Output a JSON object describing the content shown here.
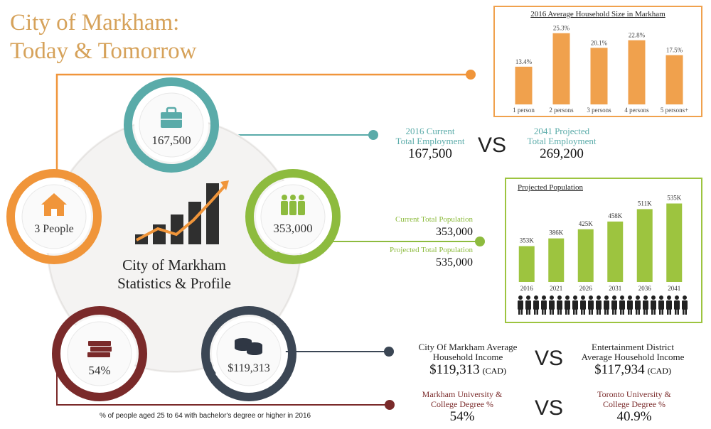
{
  "title": {
    "line1": "City of Markham:",
    "line2": "Today & Tomorrow"
  },
  "center": {
    "line1": "City of Markham",
    "line2": "Statistics & Profile"
  },
  "circles": {
    "employment": {
      "value": "167,500",
      "icon": "briefcase-icon",
      "color": "#5aaba9"
    },
    "population": {
      "value": "353,000",
      "icon": "people-icon",
      "color": "#8dbb3e"
    },
    "income": {
      "value": "$119,313",
      "icon": "coins-icon",
      "color": "#3b4654"
    },
    "degree": {
      "value": "54%",
      "icon": "books-icon",
      "color": "#7a2a2a"
    },
    "household": {
      "value": "3 People",
      "icon": "house-icon",
      "color": "#f0953a"
    }
  },
  "employment": {
    "current_label": "2016 Current\nTotal Employment",
    "current_value": "167,500",
    "vs": "VS",
    "projected_label": "2041 Projected\nTotal Employment",
    "projected_value": "269,200"
  },
  "population": {
    "current_label": "Current Total Population",
    "current_value": "353,000",
    "projected_label": "Projected Total Population",
    "projected_value": "535,000"
  },
  "income": {
    "left_label": "City Of Markham Average\nHousehold Income",
    "left_value": "$119,313",
    "left_unit": "(CAD)",
    "vs": "VS",
    "right_label": "Entertainment District\nAverage Household Income",
    "right_value": "$117,934",
    "right_unit": "(CAD)"
  },
  "degree": {
    "caption": "% of people aged 25 to 64  with bachelor's degree or higher in 2016",
    "left_label": "Markham University &\nCollege Degree %",
    "left_value": "54%",
    "vs": "VS",
    "right_label": "Toronto University &\nCollege Degree %",
    "right_value": "40.9%"
  },
  "chart_data": [
    {
      "type": "bar",
      "title": "2016 Average Household Size in Markham",
      "categories": [
        "1 person",
        "2 persons",
        "3 persons",
        "4 persons",
        "5 persons+"
      ],
      "values": [
        13.4,
        25.3,
        20.1,
        22.8,
        17.5
      ],
      "data_labels": [
        "13.4%",
        "25.3%",
        "20.1%",
        "22.8%",
        "17.5%"
      ],
      "ylim": [
        0,
        27
      ],
      "color": "#f0a14d"
    },
    {
      "type": "bar",
      "title": "Projected Population",
      "categories": [
        "2016",
        "2021",
        "2026",
        "2031",
        "2036",
        "2041"
      ],
      "values": [
        353,
        386,
        425,
        458,
        511,
        535
      ],
      "data_labels": [
        "353K",
        "386K",
        "425K",
        "458K",
        "511K",
        "535K"
      ],
      "ylim": [
        0,
        560
      ],
      "color": "#9dc43f"
    }
  ]
}
